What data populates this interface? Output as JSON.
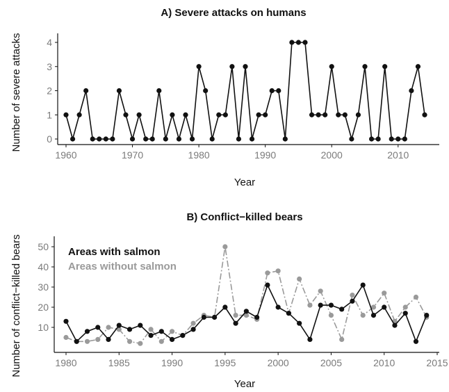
{
  "colors": {
    "salmon": "#111111",
    "no_salmon": "#9a9a9a",
    "axis": "#111111",
    "tick_text": "#7a7a7a"
  },
  "chart_data": [
    {
      "type": "line",
      "title": "A) Severe attacks on humans",
      "xlabel": "Year",
      "ylabel": "Number of severe attacks",
      "xlim": [
        1960,
        2014
      ],
      "ylim": [
        0,
        4
      ],
      "xticks": [
        1960,
        1970,
        1980,
        1990,
        2000,
        2010
      ],
      "yticks": [
        0,
        1,
        2,
        3,
        4
      ],
      "x": [
        1960,
        1961,
        1962,
        1963,
        1964,
        1965,
        1966,
        1967,
        1968,
        1969,
        1970,
        1971,
        1972,
        1973,
        1974,
        1975,
        1976,
        1977,
        1978,
        1979,
        1980,
        1981,
        1982,
        1983,
        1984,
        1985,
        1986,
        1987,
        1988,
        1989,
        1990,
        1991,
        1992,
        1993,
        1994,
        1995,
        1996,
        1997,
        1998,
        1999,
        2000,
        2001,
        2002,
        2003,
        2004,
        2005,
        2006,
        2007,
        2008,
        2009,
        2010,
        2011,
        2012,
        2013,
        2014
      ],
      "series": [
        {
          "values": [
            1,
            0,
            1,
            2,
            0,
            0,
            0,
            0,
            2,
            1,
            0,
            1,
            0,
            0,
            2,
            0,
            1,
            0,
            1,
            0,
            3,
            2,
            0,
            1,
            1,
            3,
            0,
            3,
            0,
            1,
            1,
            2,
            2,
            0,
            4,
            4,
            4,
            1,
            1,
            1,
            3,
            1,
            1,
            0,
            1,
            3,
            0,
            0,
            3,
            0,
            0,
            0,
            2,
            3,
            1
          ]
        }
      ]
    },
    {
      "type": "line",
      "title": "B) Conflict−killed bears",
      "xlabel": "Year",
      "ylabel": "Number of conflict−killed bears",
      "xlim": [
        1980,
        2015
      ],
      "ylim": [
        0,
        50
      ],
      "xticks": [
        1980,
        1985,
        1990,
        1995,
        2000,
        2005,
        2010,
        2015
      ],
      "yticks": [
        10,
        20,
        30,
        40,
        50
      ],
      "x": [
        1980,
        1981,
        1982,
        1983,
        1984,
        1985,
        1986,
        1987,
        1988,
        1989,
        1990,
        1991,
        1992,
        1993,
        1994,
        1995,
        1996,
        1997,
        1998,
        1999,
        2000,
        2001,
        2002,
        2003,
        2004,
        2005,
        2006,
        2007,
        2008,
        2009,
        2010,
        2011,
        2012,
        2013,
        2014
      ],
      "legend": [
        "Areas with salmon",
        "Areas without salmon"
      ],
      "legend_position": "top-left",
      "series": [
        {
          "name": "Areas with salmon",
          "style": "solid",
          "values": [
            13,
            3,
            8,
            10,
            4,
            11,
            9,
            11,
            6,
            8,
            4,
            6,
            9,
            15,
            15,
            20,
            12,
            18,
            15,
            31,
            20,
            17,
            12,
            4,
            21,
            21,
            19,
            23,
            31,
            16,
            20,
            11,
            17,
            3,
            16
          ]
        },
        {
          "name": "Areas without salmon",
          "style": "dashdot",
          "values": [
            5,
            3,
            3,
            4,
            10,
            9,
            3,
            2,
            9,
            3,
            8,
            6,
            12,
            16,
            15,
            50,
            16,
            16,
            14,
            37,
            38,
            17,
            34,
            21,
            28,
            16,
            4,
            26,
            16,
            20,
            27,
            13,
            20,
            25,
            15
          ]
        }
      ]
    }
  ]
}
